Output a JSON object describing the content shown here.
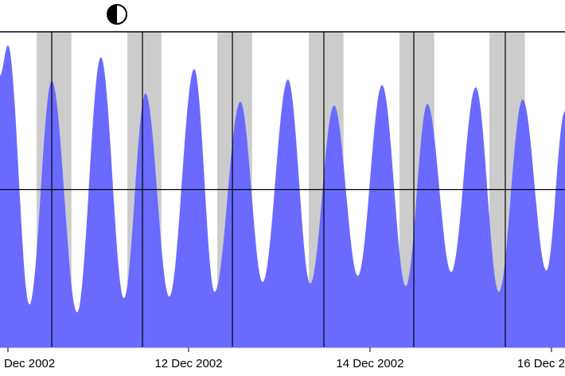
{
  "chart_data": {
    "type": "area",
    "color": "#6a6aff",
    "x": [
      0,
      2.1,
      7.8,
      13.7,
      20.4,
      26.7,
      32.8,
      38.5,
      44.8,
      51.4,
      56.8,
      63.6,
      69.5,
      76.2,
      82.1,
      88.4,
      94.7,
      101.1,
      107.4,
      113.1,
      119.4,
      125.9,
      132.0,
      138.3,
      144.6,
      149.5
    ],
    "values": [
      86.1,
      95.7,
      13.6,
      84.4,
      11.1,
      91.9,
      15.6,
      80.4,
      16.1,
      88.2,
      17.6,
      77.8,
      20.7,
      84.9,
      20.2,
      76.6,
      22.7,
      83.1,
      19.4,
      77.1,
      23.9,
      82.4,
      17.6,
      78.6,
      24.4,
      74.8
    ],
    "xlim": [
      0,
      149.5
    ],
    "ylim": [
      0,
      100
    ],
    "xticks": [
      {
        "value": 2.1,
        "label": "Dec 2002"
      },
      {
        "value": 49.9,
        "label": "12 Dec 2002"
      },
      {
        "value": 97.9,
        "label": "14 Dec 2002"
      },
      {
        "value": 145.9,
        "label": "16 Dec 2"
      }
    ],
    "x_grid": [
      13.7,
      37.7,
      61.5,
      85.7,
      109.5,
      133.7
    ],
    "y_grid": [
      50
    ],
    "night_bands": [
      [
        9.7,
        18.9
      ],
      [
        33.7,
        42.7
      ],
      [
        57.5,
        66.7
      ],
      [
        81.7,
        90.9
      ],
      [
        105.7,
        114.9
      ],
      [
        129.5,
        138.9
      ]
    ],
    "night_color": "#cccccc"
  }
}
